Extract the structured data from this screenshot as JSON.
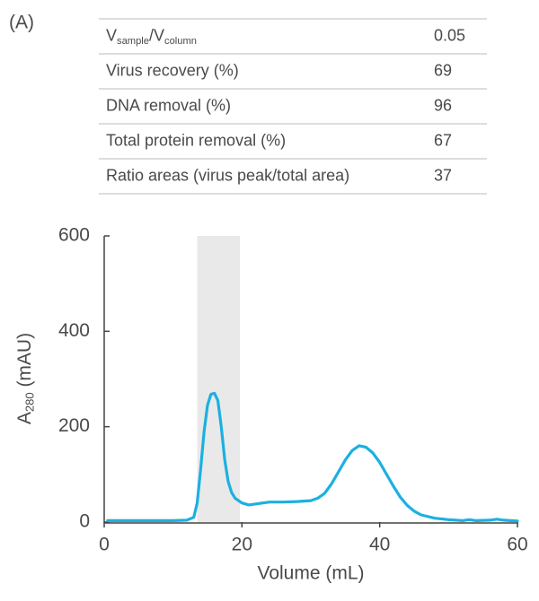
{
  "panel_label": "(A)",
  "table": {
    "rows": [
      {
        "label": [
          {
            "text": "V"
          },
          {
            "text": "sample",
            "sub": true
          },
          {
            "text": "/V"
          },
          {
            "text": "column",
            "sub": true
          }
        ],
        "value": 0.05
      },
      {
        "label": [
          {
            "text": "Virus recovery (%)"
          }
        ],
        "value": 69
      },
      {
        "label": [
          {
            "text": "DNA removal (%)"
          }
        ],
        "value": 96
      },
      {
        "label": [
          {
            "text": "Total protein removal (%)"
          }
        ],
        "value": 67
      },
      {
        "label": [
          {
            "text": "Ratio areas (virus peak/total area)"
          }
        ],
        "value": 37
      }
    ]
  },
  "chart_data": {
    "type": "line",
    "xlabel": "Volume (mL)",
    "ylabel": [
      {
        "text": "A"
      },
      {
        "text": "280",
        "sub": true
      },
      {
        "text": " (mAU)"
      }
    ],
    "x": [
      0.5,
      5,
      10,
      12,
      13,
      13.5,
      14,
      14.5,
      15,
      15.5,
      16,
      16.5,
      17,
      17.5,
      18,
      18.5,
      19,
      20,
      21,
      22,
      24,
      26,
      28,
      30,
      31,
      32,
      33,
      34,
      35,
      36,
      37,
      38,
      39,
      40,
      41,
      42,
      43,
      44,
      45,
      46,
      48,
      50,
      52,
      53,
      54,
      56,
      57,
      58,
      60
    ],
    "values": [
      3,
      3,
      3,
      4,
      10,
      40,
      110,
      190,
      245,
      268,
      270,
      255,
      200,
      130,
      85,
      62,
      50,
      40,
      36,
      38,
      42,
      42,
      43,
      45,
      50,
      60,
      80,
      105,
      130,
      150,
      160,
      157,
      145,
      125,
      100,
      75,
      52,
      35,
      23,
      15,
      8,
      5,
      3,
      5,
      3,
      4,
      6,
      4,
      2
    ],
    "color": "#1cb0e0",
    "highlight": [
      13.5,
      19.7
    ],
    "highlight_color": "#e9e9e9",
    "xlim": [
      0,
      60
    ],
    "ylim": [
      0,
      600
    ],
    "xticks": [
      0,
      20,
      40,
      60
    ],
    "yticks": [
      0,
      200,
      400,
      600
    ]
  }
}
